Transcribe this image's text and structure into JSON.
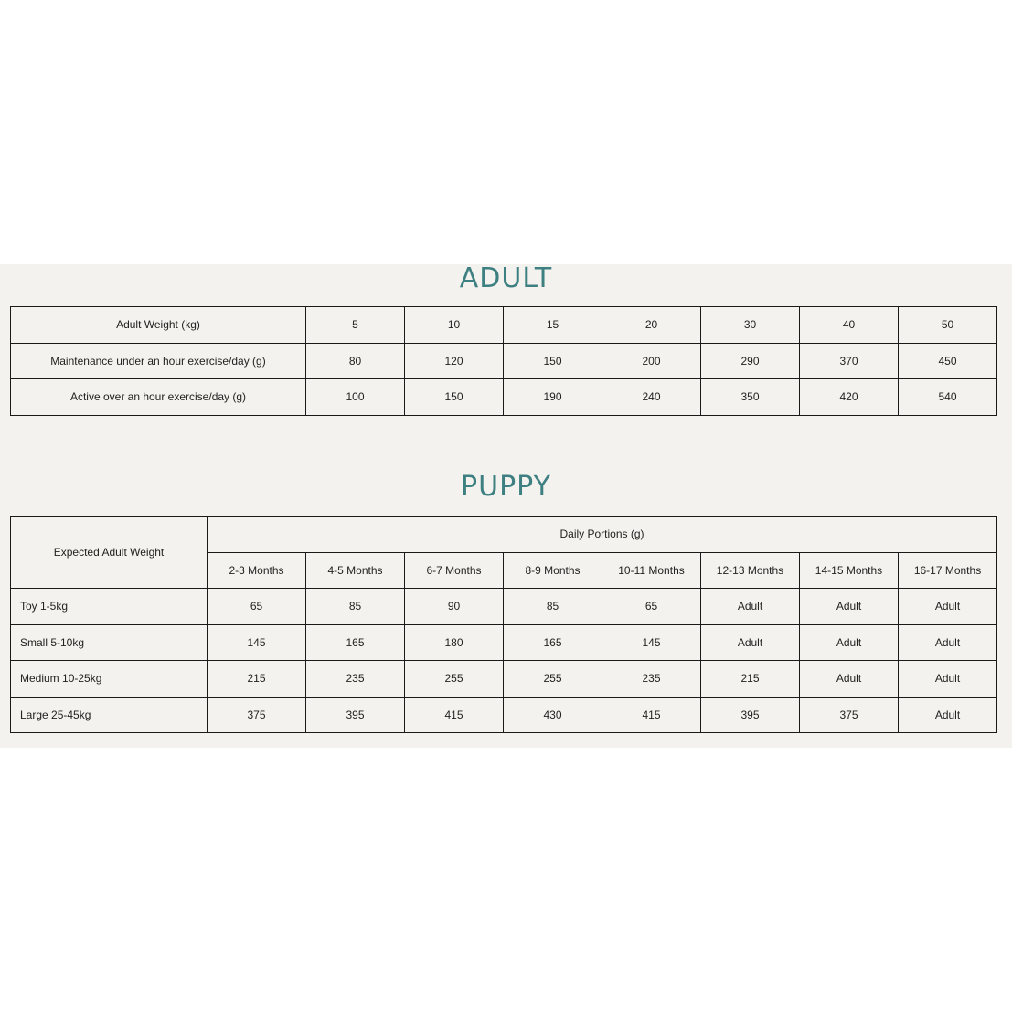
{
  "adult": {
    "title": "ADULT",
    "rows": [
      {
        "label": "Adult Weight (kg)",
        "values": [
          "5",
          "10",
          "15",
          "20",
          "30",
          "40",
          "50"
        ]
      },
      {
        "label": "Maintenance under an hour exercise/day (g)",
        "values": [
          "80",
          "120",
          "150",
          "200",
          "290",
          "370",
          "450"
        ]
      },
      {
        "label": "Active over an hour exercise/day (g)",
        "values": [
          "100",
          "150",
          "190",
          "240",
          "350",
          "420",
          "540"
        ]
      }
    ]
  },
  "puppy": {
    "title": "PUPPY",
    "corner_header": "Expected Adult Weight",
    "group_header": "Daily Portions (g)",
    "columns": [
      "2-3 Months",
      "4-5 Months",
      "6-7 Months",
      "8-9 Months",
      "10-11 Months",
      "12-13 Months",
      "14-15 Months",
      "16-17 Months"
    ],
    "rows": [
      {
        "label": "Toy 1-5kg",
        "values": [
          "65",
          "85",
          "90",
          "85",
          "65",
          "Adult",
          "Adult",
          "Adult"
        ]
      },
      {
        "label": "Small 5-10kg",
        "values": [
          "145",
          "165",
          "180",
          "165",
          "145",
          "Adult",
          "Adult",
          "Adult"
        ]
      },
      {
        "label": "Medium 10-25kg",
        "values": [
          "215",
          "235",
          "255",
          "255",
          "235",
          "215",
          "Adult",
          "Adult"
        ]
      },
      {
        "label": "Large 25-45kg",
        "values": [
          "375",
          "395",
          "415",
          "430",
          "415",
          "395",
          "375",
          "Adult"
        ]
      }
    ]
  },
  "colors": {
    "title": "#3e8081",
    "panel_background": "#f3f2ee",
    "border": "#1a1a1a"
  }
}
